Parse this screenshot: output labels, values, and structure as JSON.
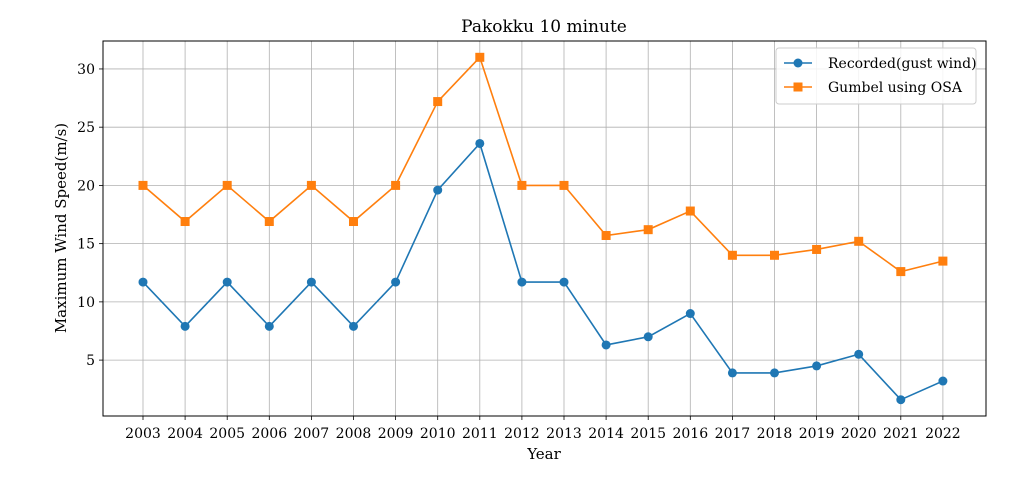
{
  "chart_data": {
    "type": "line",
    "title": "Pakokku 10 minute",
    "xlabel": "Year",
    "ylabel": "Maximum Wind Speed(m/s)",
    "categories": [
      "2003",
      "2004",
      "2005",
      "2006",
      "2007",
      "2008",
      "2009",
      "2010",
      "2011",
      "2012",
      "2013",
      "2014",
      "2015",
      "2016",
      "2017",
      "2018",
      "2019",
      "2020",
      "2021",
      "2022"
    ],
    "yticks": [
      5,
      10,
      15,
      20,
      25,
      30
    ],
    "ylim": [
      0.2,
      32.4
    ],
    "grid": true,
    "legend_position": "top-right",
    "series": [
      {
        "name": "Recorded(gust wind)",
        "color": "#1f77b4",
        "marker": "circle",
        "values": [
          11.7,
          7.9,
          11.7,
          7.9,
          11.7,
          7.9,
          11.7,
          19.6,
          23.6,
          11.7,
          11.7,
          6.3,
          7.0,
          9.0,
          3.9,
          3.9,
          4.5,
          5.5,
          1.6,
          3.2
        ]
      },
      {
        "name": "Gumbel using OSA",
        "color": "#ff7f0e",
        "marker": "square",
        "values": [
          20.0,
          16.9,
          20.0,
          16.9,
          20.0,
          16.9,
          20.0,
          27.2,
          31.0,
          20.0,
          20.0,
          15.7,
          16.2,
          17.8,
          14.0,
          14.0,
          14.5,
          15.2,
          12.6,
          13.5
        ]
      }
    ]
  }
}
